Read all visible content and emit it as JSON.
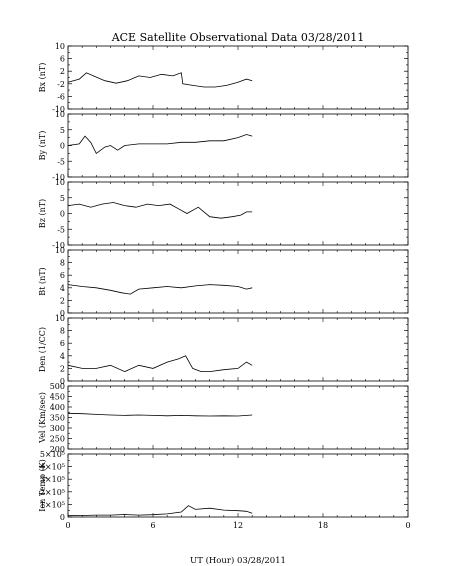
{
  "chart_data": {
    "type": "line",
    "title": "ACE Satellite Observational Data   03/28/2011",
    "xlabel": "UT (Hour)   03/28/2011",
    "xlim": [
      0,
      24
    ],
    "x_tick_labels": [
      "0",
      "6",
      "12",
      "18",
      "0"
    ],
    "grid": false,
    "panels": [
      {
        "ylabel": "Bx (nT)",
        "ylim": [
          -10,
          10
        ],
        "ytick_labels": [
          "10",
          "6",
          "2",
          "-2",
          "-6",
          "-10"
        ],
        "series": [
          {
            "x": [
              0,
              0.8,
              1.3,
              1.8,
              2.6,
              3.4,
              4.2,
              5.0,
              5.8,
              6.6,
              7.4,
              8.0,
              8.1,
              8.8,
              9.6,
              10.4,
              11.2,
              12.0,
              12.6,
              13.0
            ],
            "values": [
              -1.5,
              -0.5,
              1.5,
              0.5,
              -1.0,
              -1.8,
              -1.0,
              0.5,
              0.0,
              1.0,
              0.5,
              1.5,
              -2.0,
              -2.5,
              -3.0,
              -3.0,
              -2.5,
              -1.5,
              -0.5,
              -1.0
            ]
          }
        ]
      },
      {
        "ylabel": "By (nT)",
        "ylim": [
          -10,
          10
        ],
        "ytick_labels": [
          "10",
          "5",
          "0",
          "-5",
          "-10"
        ],
        "series": [
          {
            "x": [
              0,
              0.8,
              1.2,
              1.6,
              2.0,
              2.6,
              3.0,
              3.5,
              4.0,
              5.0,
              6.0,
              7.0,
              8.0,
              9.0,
              10.0,
              11.0,
              12.0,
              12.6,
              13.0
            ],
            "values": [
              0.0,
              0.5,
              3.0,
              1.0,
              -2.5,
              -0.5,
              0.0,
              -1.5,
              0.0,
              0.5,
              0.5,
              0.5,
              1.0,
              1.0,
              1.5,
              1.5,
              2.5,
              3.5,
              3.0
            ]
          }
        ]
      },
      {
        "ylabel": "Bz (nT)",
        "ylim": [
          -10,
          10
        ],
        "ytick_labels": [
          "10",
          "5",
          "0",
          "-5",
          "-10"
        ],
        "series": [
          {
            "x": [
              0,
              0.8,
              1.6,
              2.4,
              3.2,
              4.0,
              4.8,
              5.6,
              6.4,
              7.2,
              7.8,
              8.4,
              9.2,
              10.0,
              10.8,
              11.6,
              12.2,
              12.6,
              13.0
            ],
            "values": [
              2.5,
              3.0,
              2.0,
              3.0,
              3.5,
              2.5,
              2.0,
              3.0,
              2.5,
              3.0,
              1.5,
              0.0,
              2.0,
              -1.0,
              -1.5,
              -1.0,
              -0.5,
              0.5,
              0.5
            ]
          }
        ]
      },
      {
        "ylabel": "Bt (nT)",
        "ylim": [
          0,
          10
        ],
        "ytick_labels": [
          "10",
          "8",
          "6",
          "4",
          "2",
          "0"
        ],
        "series": [
          {
            "x": [
              0,
              1.0,
              2.0,
              3.0,
              3.8,
              4.4,
              5.0,
              6.0,
              7.0,
              8.0,
              9.0,
              10.0,
              11.0,
              12.0,
              12.6,
              13.0
            ],
            "values": [
              4.5,
              4.2,
              4.0,
              3.6,
              3.2,
              3.0,
              3.8,
              4.0,
              4.2,
              4.0,
              4.3,
              4.5,
              4.4,
              4.2,
              3.8,
              4.0
            ]
          }
        ]
      },
      {
        "ylabel": "Den (1/CC)",
        "ylim": [
          0,
          10
        ],
        "ytick_labels": [
          "10",
          "8",
          "6",
          "4",
          "2",
          "0"
        ],
        "series": [
          {
            "x": [
              0,
              1.0,
              2.0,
              3.0,
              4.0,
              5.0,
              6.0,
              7.0,
              7.8,
              8.3,
              8.8,
              9.4,
              10.0,
              11.0,
              12.0,
              12.6,
              13.0
            ],
            "values": [
              2.5,
              2.0,
              2.0,
              2.5,
              1.5,
              2.5,
              2.0,
              3.0,
              3.5,
              4.0,
              2.0,
              1.5,
              1.5,
              1.8,
              2.0,
              3.0,
              2.5
            ]
          }
        ]
      },
      {
        "ylabel": "Vel (Km/sec)",
        "ylim": [
          200,
          500
        ],
        "ytick_labels": [
          "500",
          "450",
          "400",
          "350",
          "300",
          "250",
          "200"
        ],
        "series": [
          {
            "x": [
              0,
              1.0,
              2.0,
              3.0,
              4.0,
              5.0,
              6.0,
              7.0,
              8.0,
              9.0,
              10.0,
              11.0,
              12.0,
              13.0
            ],
            "values": [
              370,
              368,
              365,
              362,
              360,
              362,
              360,
              358,
              360,
              358,
              357,
              358,
              357,
              362
            ]
          }
        ]
      },
      {
        "ylabel": "Ion Temp (K)",
        "ylim": [
          0,
          500000
        ],
        "ytick_labels": [
          "5×10⁵",
          "4×10⁵",
          "3×10⁵",
          "2×10⁵",
          "1×10⁵",
          "0"
        ],
        "series": [
          {
            "x": [
              0,
              1.0,
              2.0,
              3.0,
              4.0,
              5.0,
              6.0,
              7.0,
              8.0,
              8.5,
              9.0,
              10.0,
              11.0,
              12.0,
              12.6,
              13.0
            ],
            "values": [
              10000,
              12000,
              15000,
              15000,
              20000,
              15000,
              18000,
              25000,
              40000,
              90000,
              60000,
              70000,
              55000,
              50000,
              45000,
              30000
            ]
          }
        ]
      }
    ]
  }
}
